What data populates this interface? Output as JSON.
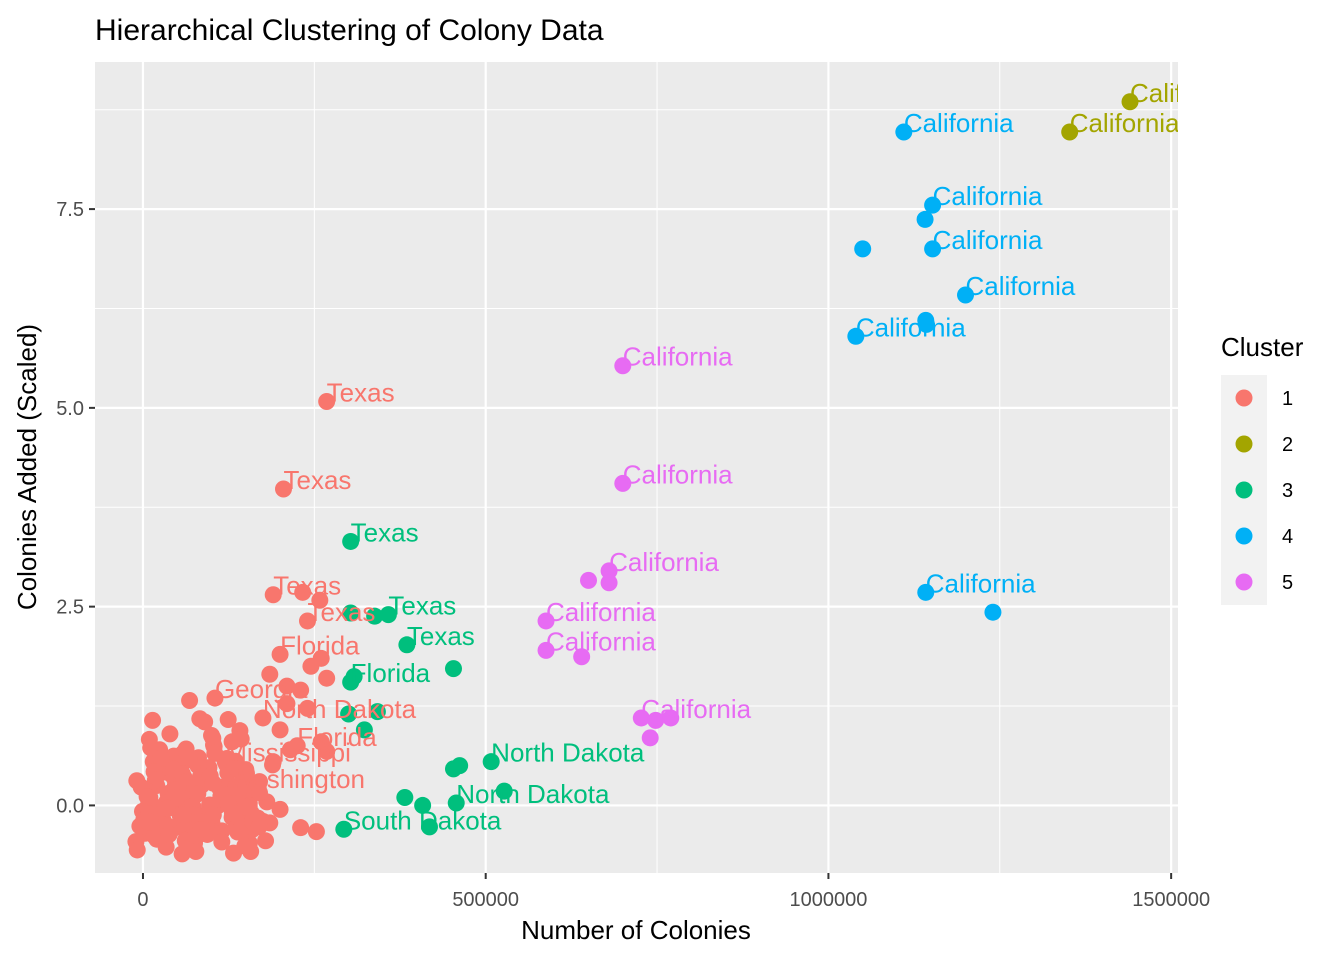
{
  "chart_data": {
    "type": "scatter",
    "title": "Hierarchical Clustering of Colony Data",
    "xlabel": "Number of Colonies",
    "ylabel": "Colonies Added (Scaled)",
    "xlim": [
      -70000,
      1510000
    ],
    "ylim": [
      -0.85,
      9.35
    ],
    "x_ticks": [
      0,
      500000,
      1000000,
      1500000
    ],
    "x_tick_labels": [
      "0",
      "500000",
      "1000000",
      "1500000"
    ],
    "y_ticks": [
      0.0,
      2.5,
      5.0,
      7.5
    ],
    "y_tick_labels": [
      "0.0",
      "2.5",
      "5.0",
      "7.5"
    ],
    "grid": true,
    "legend": {
      "title": "Cluster",
      "position": "right",
      "entries": [
        {
          "label": "1",
          "color": "#F8766D"
        },
        {
          "label": "2",
          "color": "#A3A500"
        },
        {
          "label": "3",
          "color": "#00BF7D"
        },
        {
          "label": "4",
          "color": "#00B0F6"
        },
        {
          "label": "5",
          "color": "#E76BF3"
        }
      ]
    },
    "series": [
      {
        "name": "1",
        "color": "#F8766D",
        "points": [
          {
            "x": 268000,
            "y": 5.08,
            "label": "Texas"
          },
          {
            "x": 205000,
            "y": 3.98,
            "label": "Texas"
          },
          {
            "x": 190000,
            "y": 2.65,
            "label": "Texas"
          },
          {
            "x": 233000,
            "y": 2.68
          },
          {
            "x": 258000,
            "y": 2.58
          },
          {
            "x": 240000,
            "y": 2.32,
            "label": "Texas"
          },
          {
            "x": 200000,
            "y": 1.9,
            "label": "Florida"
          },
          {
            "x": 185000,
            "y": 1.65
          },
          {
            "x": 210000,
            "y": 1.5
          },
          {
            "x": 230000,
            "y": 1.45
          },
          {
            "x": 245000,
            "y": 1.75
          },
          {
            "x": 260000,
            "y": 1.85
          },
          {
            "x": 268000,
            "y": 1.6
          },
          {
            "x": 105000,
            "y": 1.35,
            "label": "Georgia"
          },
          {
            "x": 68000,
            "y": 1.32
          },
          {
            "x": 210000,
            "y": 1.28
          },
          {
            "x": 240000,
            "y": 1.22
          },
          {
            "x": 175000,
            "y": 1.1,
            "label": "North Dakota"
          },
          {
            "x": 90000,
            "y": 1.05
          },
          {
            "x": 14000,
            "y": 1.07
          },
          {
            "x": 200000,
            "y": 0.95
          },
          {
            "x": 225000,
            "y": 0.75,
            "label": "Florida"
          },
          {
            "x": 260000,
            "y": 0.8
          },
          {
            "x": 268000,
            "y": 0.68
          },
          {
            "x": 100000,
            "y": 0.88
          },
          {
            "x": 130000,
            "y": 0.8
          },
          {
            "x": 120000,
            "y": 0.55,
            "label": "Mississippi"
          },
          {
            "x": 45000,
            "y": 0.62
          },
          {
            "x": 80000,
            "y": 0.5
          },
          {
            "x": 15000,
            "y": 0.55
          },
          {
            "x": 150000,
            "y": 0.45
          },
          {
            "x": 30000,
            "y": 0.42
          },
          {
            "x": 60000,
            "y": 0.35
          },
          {
            "x": 100000,
            "y": 0.3
          },
          {
            "x": 125000,
            "y": 0.22,
            "label": "Washington"
          },
          {
            "x": 20000,
            "y": 0.25
          },
          {
            "x": 50000,
            "y": 0.15
          },
          {
            "x": 80000,
            "y": 0.18
          },
          {
            "x": 140000,
            "y": 0.12
          },
          {
            "x": 10000,
            "y": 0.1
          },
          {
            "x": 35000,
            "y": 0.05
          },
          {
            "x": 70000,
            "y": 0.02
          },
          {
            "x": 110000,
            "y": 0.0
          },
          {
            "x": 155000,
            "y": 0.03
          },
          {
            "x": 5000,
            "y": -0.05
          },
          {
            "x": 25000,
            "y": -0.1
          },
          {
            "x": 55000,
            "y": -0.08
          },
          {
            "x": 90000,
            "y": -0.12
          },
          {
            "x": 130000,
            "y": -0.15
          },
          {
            "x": 175000,
            "y": -0.2
          },
          {
            "x": 5000,
            "y": -0.25
          },
          {
            "x": 30000,
            "y": -0.28
          },
          {
            "x": 60000,
            "y": -0.3
          },
          {
            "x": 95000,
            "y": -0.26
          },
          {
            "x": 140000,
            "y": -0.3
          },
          {
            "x": 230000,
            "y": -0.28
          },
          {
            "x": 253000,
            "y": -0.33
          },
          {
            "x": 3000,
            "y": -0.35
          },
          {
            "x": 40000,
            "y": -0.33
          },
          {
            "x": 75000,
            "y": -0.34
          },
          {
            "x": 115000,
            "y": -0.32
          },
          {
            "x": 160000,
            "y": -0.3
          },
          {
            "x": 185000,
            "y": -0.22
          },
          {
            "x": 200000,
            "y": -0.05
          },
          {
            "x": 170000,
            "y": 0.3
          },
          {
            "x": 190000,
            "y": 0.55
          },
          {
            "x": 215000,
            "y": 0.7
          }
        ]
      },
      {
        "name": "2",
        "color": "#A3A500",
        "points": [
          {
            "x": 1440000,
            "y": 8.85,
            "label": "California"
          },
          {
            "x": 1352000,
            "y": 8.47,
            "label": "California"
          }
        ]
      },
      {
        "name": "3",
        "color": "#00BF7D",
        "points": [
          {
            "x": 303000,
            "y": 3.32,
            "label": "Texas"
          },
          {
            "x": 358000,
            "y": 2.4,
            "label": "Texas"
          },
          {
            "x": 303000,
            "y": 2.42
          },
          {
            "x": 338000,
            "y": 2.38
          },
          {
            "x": 385000,
            "y": 2.02,
            "label": "Texas"
          },
          {
            "x": 453000,
            "y": 1.72
          },
          {
            "x": 303000,
            "y": 1.55,
            "label": "Florida"
          },
          {
            "x": 308000,
            "y": 1.62
          },
          {
            "x": 342000,
            "y": 1.18
          },
          {
            "x": 300000,
            "y": 1.15
          },
          {
            "x": 323000,
            "y": 0.95
          },
          {
            "x": 462000,
            "y": 0.5
          },
          {
            "x": 453000,
            "y": 0.46
          },
          {
            "x": 508000,
            "y": 0.55,
            "label": "North Dakota"
          },
          {
            "x": 527000,
            "y": 0.18
          },
          {
            "x": 457000,
            "y": 0.03,
            "label": "North Dakota"
          },
          {
            "x": 382000,
            "y": 0.1
          },
          {
            "x": 408000,
            "y": 0.0
          },
          {
            "x": 293000,
            "y": -0.3,
            "label": "South Dakota"
          },
          {
            "x": 418000,
            "y": -0.27
          }
        ]
      },
      {
        "name": "4",
        "color": "#00B0F6",
        "points": [
          {
            "x": 1110000,
            "y": 8.47,
            "label": "California"
          },
          {
            "x": 1152000,
            "y": 7.55,
            "label": "California"
          },
          {
            "x": 1141000,
            "y": 7.37
          },
          {
            "x": 1050000,
            "y": 7.0
          },
          {
            "x": 1152000,
            "y": 7.0,
            "label": "California"
          },
          {
            "x": 1200000,
            "y": 6.42,
            "label": "California"
          },
          {
            "x": 1142000,
            "y": 6.1
          },
          {
            "x": 1143000,
            "y": 6.05
          },
          {
            "x": 1040000,
            "y": 5.9,
            "label": "California"
          },
          {
            "x": 1142000,
            "y": 2.68,
            "label": "California"
          },
          {
            "x": 1240000,
            "y": 2.43
          }
        ]
      },
      {
        "name": "5",
        "color": "#E76BF3",
        "points": [
          {
            "x": 700000,
            "y": 5.53,
            "label": "California"
          },
          {
            "x": 700000,
            "y": 4.05,
            "label": "California"
          },
          {
            "x": 650000,
            "y": 2.83
          },
          {
            "x": 680000,
            "y": 2.95,
            "label": "California"
          },
          {
            "x": 680000,
            "y": 2.8
          },
          {
            "x": 588000,
            "y": 2.32,
            "label": "California"
          },
          {
            "x": 588000,
            "y": 1.95,
            "label": "California"
          },
          {
            "x": 640000,
            "y": 1.87
          },
          {
            "x": 727000,
            "y": 1.1,
            "label": "California"
          },
          {
            "x": 748000,
            "y": 1.07
          },
          {
            "x": 770000,
            "y": 1.1
          },
          {
            "x": 740000,
            "y": 0.85
          }
        ]
      }
    ]
  }
}
